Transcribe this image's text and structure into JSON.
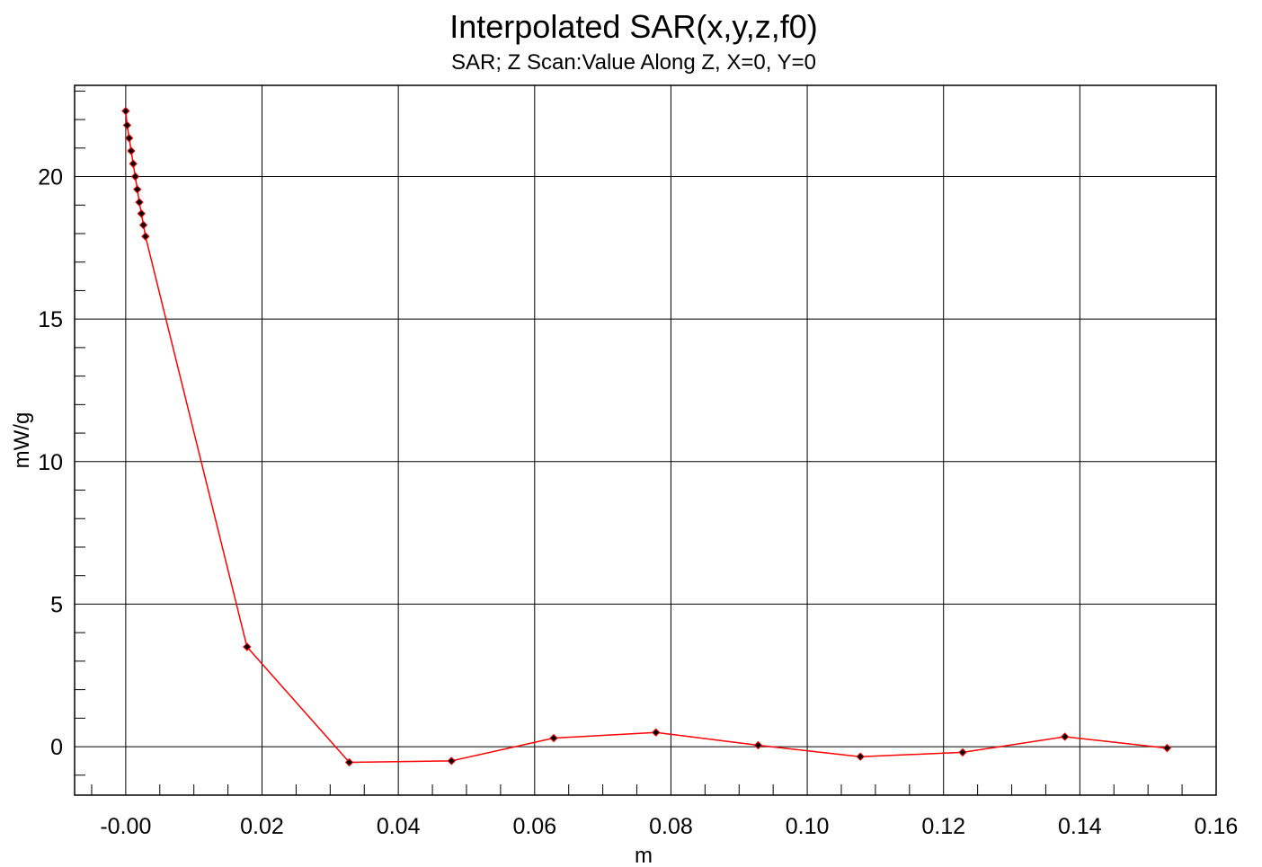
{
  "chart_data": {
    "type": "line",
    "title": "Interpolated SAR(x,y,z,f0)",
    "subtitle": "SAR; Z Scan:Value Along Z, X=0, Y=0",
    "xlabel": "m",
    "ylabel": "mW/g",
    "xlim": [
      -0.0075,
      0.16
    ],
    "ylim": [
      -1.7,
      23.2
    ],
    "x_ticks": [
      0.0,
      0.02,
      0.04,
      0.06,
      0.08,
      0.1,
      0.12,
      0.14,
      0.16
    ],
    "x_tick_labels": [
      "-0.00",
      "0.02",
      "0.04",
      "0.06",
      "0.08",
      "0.10",
      "0.12",
      "0.14",
      "0.16"
    ],
    "y_ticks": [
      0,
      5,
      10,
      15,
      20
    ],
    "y_tick_labels": [
      "0",
      "5",
      "10",
      "15",
      "20"
    ],
    "grid": true,
    "line_color": "#ff0000",
    "marker_color": "#000000",
    "series": [
      {
        "x": [
          0.0,
          0.0002,
          0.0005,
          0.0008,
          0.0011,
          0.0014,
          0.0017,
          0.002,
          0.0023,
          0.0026,
          0.0029,
          0.0178,
          0.0328,
          0.0478,
          0.0628,
          0.0778,
          0.0928,
          0.1078,
          0.1228,
          0.1378,
          0.1528
        ],
        "y": [
          22.3,
          21.8,
          21.35,
          20.9,
          20.45,
          20.0,
          19.55,
          19.1,
          18.7,
          18.3,
          17.9,
          3.5,
          -0.55,
          -0.5,
          0.3,
          0.5,
          0.05,
          -0.35,
          -0.2,
          0.35,
          -0.05
        ]
      }
    ]
  }
}
